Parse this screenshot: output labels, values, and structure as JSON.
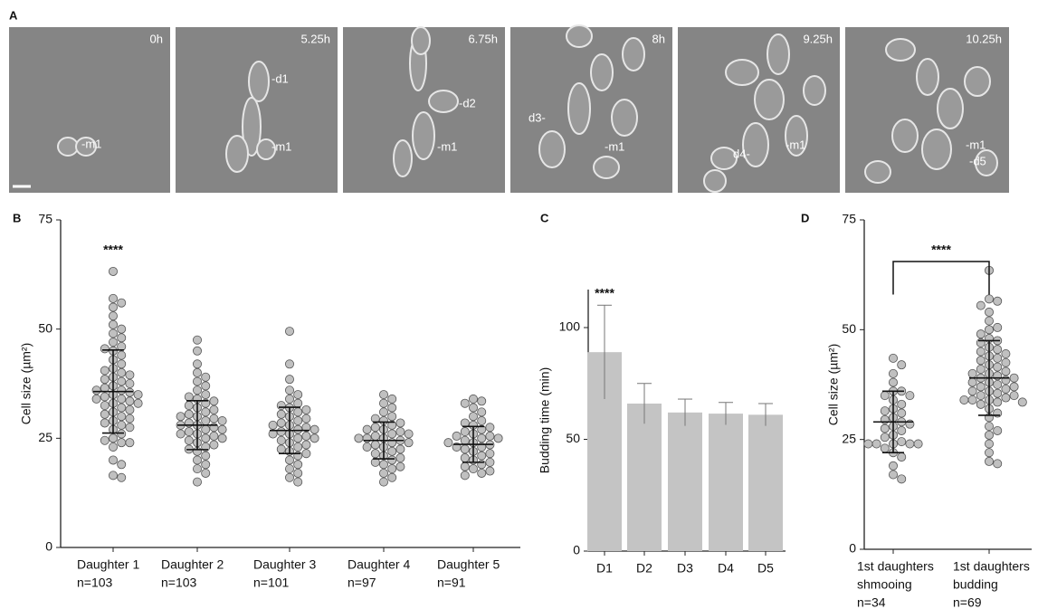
{
  "panel_a": {
    "panel_label": "A",
    "frames": [
      {
        "time": "0h",
        "cells": [
          "-m1"
        ]
      },
      {
        "time": "5.25h",
        "cells": [
          "-d1",
          "-m1"
        ]
      },
      {
        "time": "6.75h",
        "cells": [
          "-d2",
          "-m1"
        ]
      },
      {
        "time": "8h",
        "cells": [
          "d3-",
          "-m1"
        ]
      },
      {
        "time": "9.25h",
        "cells": [
          "d4-",
          "-m1"
        ]
      },
      {
        "time": "10.25h",
        "cells": [
          "-m1",
          "-d5"
        ]
      }
    ]
  },
  "chart_data": [
    {
      "type": "swarm",
      "panel_label": "B",
      "y_label": "Cell size (µm²)",
      "color": "#c0c0c0",
      "ylim": [
        0,
        75
      ],
      "yticks": [
        0,
        25,
        50,
        75
      ],
      "categories": [
        [
          "Daughter 1"
        ],
        [
          "Daughter 2"
        ],
        [
          "Daughter 3"
        ],
        [
          "Daughter 4"
        ],
        [
          "Daughter 5"
        ]
      ],
      "n_labels": [
        "n=103",
        "n=103",
        "n=101",
        "n=97",
        "n=91"
      ],
      "values": [
        [
          63.2,
          57,
          56,
          55,
          53,
          51,
          50,
          49,
          48,
          47,
          46,
          45.5,
          45,
          44,
          43,
          42,
          41,
          40.5,
          40,
          39.5,
          39,
          38.5,
          38,
          37.5,
          37,
          36.5,
          36,
          36,
          35.5,
          35,
          35,
          34.5,
          34,
          34,
          33.5,
          33,
          33,
          32.5,
          32,
          31.5,
          31,
          30.5,
          30,
          29.5,
          29,
          28.5,
          28,
          27.5,
          27,
          26,
          25,
          24.5,
          24,
          24,
          23,
          20,
          19,
          16.5,
          16
        ],
        [
          47.5,
          45,
          42,
          40,
          39,
          38,
          37,
          36,
          35,
          34.5,
          34,
          33.5,
          33,
          32.5,
          32,
          31.5,
          31,
          30.5,
          30,
          30,
          29.5,
          29,
          29,
          28.5,
          28,
          28,
          27.5,
          27,
          27,
          26.5,
          26,
          26,
          25.5,
          25,
          25,
          24.5,
          24,
          23.5,
          23,
          22.5,
          22,
          21,
          20,
          19,
          18,
          17,
          15
        ],
        [
          49.5,
          42,
          38.5,
          36,
          35,
          34,
          33,
          32.5,
          32,
          31.5,
          31,
          30.5,
          30,
          29.5,
          29,
          28.5,
          28,
          28,
          27.5,
          27,
          27,
          26.5,
          26,
          26,
          25.5,
          25,
          25,
          24.5,
          24,
          23.5,
          23,
          22.5,
          22,
          21.5,
          21,
          20,
          19,
          18,
          17,
          16,
          15
        ],
        [
          35,
          34,
          33,
          32,
          31,
          30,
          29.5,
          29,
          28.5,
          28,
          27.5,
          27,
          27,
          26.5,
          26,
          26,
          25.5,
          25,
          25,
          25,
          24.5,
          24,
          24,
          23.5,
          23,
          23,
          22.5,
          22,
          21.5,
          21,
          20.5,
          20,
          19.5,
          19,
          18.5,
          18,
          17,
          16,
          15
        ],
        [
          34,
          33.5,
          33,
          32,
          31,
          30,
          29,
          28.5,
          28,
          27.5,
          27,
          26.5,
          26,
          25.5,
          25.5,
          25,
          25,
          24.5,
          24,
          24,
          23.5,
          23,
          23,
          22.5,
          22,
          21.5,
          21,
          20.5,
          20,
          19.5,
          19,
          18.5,
          18,
          17.5,
          17,
          16.5
        ]
      ],
      "means": [
        35.7,
        28,
        26.8,
        24.5,
        23.6
      ],
      "sds": [
        9.5,
        5.6,
        5.3,
        4.2,
        4.1
      ],
      "annotations": [
        {
          "category": 0,
          "text": "****",
          "y": 68
        }
      ]
    },
    {
      "type": "bar",
      "panel_label": "C",
      "y_label": "Budding time (min)",
      "color": "#c4c4c4",
      "ylim": [
        0,
        117
      ],
      "yticks": [
        0,
        50,
        100
      ],
      "categories": [
        [
          "D1"
        ],
        [
          "D2"
        ],
        [
          "D3"
        ],
        [
          "D4"
        ],
        [
          "D5"
        ]
      ],
      "values": [
        89,
        66,
        62,
        61.5,
        61
      ],
      "errors": [
        21,
        9,
        6,
        5,
        5
      ],
      "annotations": [
        {
          "category": 0,
          "text": "****",
          "y": 115
        }
      ]
    },
    {
      "type": "swarm",
      "panel_label": "D",
      "y_label": "Cell size (µm²)",
      "color": "#c0c0c0",
      "ylim": [
        0,
        75
      ],
      "yticks": [
        0,
        25,
        50,
        75
      ],
      "categories": [
        [
          "1st daughters",
          "shmooing"
        ],
        [
          "1st daughters",
          "budding"
        ]
      ],
      "n_labels": [
        "n=34",
        "n=69"
      ],
      "values": [
        [
          43.5,
          42,
          40,
          38,
          36,
          36,
          35,
          35,
          34,
          33,
          32,
          31.5,
          31,
          30,
          29.5,
          29,
          28.5,
          28,
          27.5,
          27,
          26,
          25.5,
          24.5,
          24,
          24,
          24,
          24,
          24,
          23,
          22,
          21,
          19,
          17,
          16
        ],
        [
          63.5,
          57,
          56.5,
          55.5,
          54,
          52,
          50.5,
          50,
          49,
          48,
          47.5,
          47,
          46,
          45.5,
          45,
          44.5,
          44,
          43.5,
          43,
          42.5,
          42,
          41.5,
          41,
          40.5,
          40,
          40,
          39.5,
          39,
          39,
          38.5,
          38,
          38,
          37.5,
          37,
          37,
          36.5,
          36,
          36,
          35.5,
          35,
          35,
          34.5,
          34,
          34,
          34,
          33.5,
          33.5,
          33,
          32,
          31,
          30,
          28,
          27,
          26,
          24,
          22,
          20,
          19.5
        ]
      ],
      "means": [
        29,
        39
      ],
      "sds": [
        7,
        8.5
      ],
      "annotations": [
        {
          "category": 0,
          "category_end": 1,
          "text": "****",
          "y": 68
        }
      ]
    }
  ]
}
